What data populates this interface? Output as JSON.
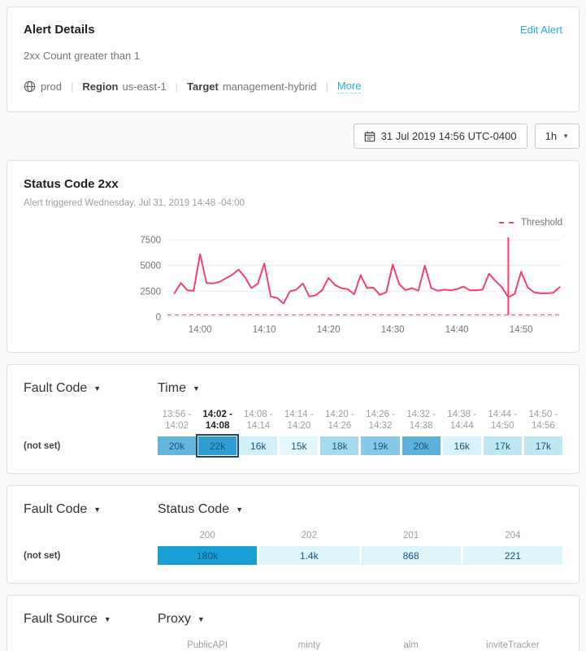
{
  "alert_details": {
    "title": "Alert Details",
    "edit_link": "Edit Alert",
    "condition": "2xx Count greater than 1",
    "environment": "prod",
    "region_label": "Region",
    "region_value": "us-east-1",
    "target_label": "Target",
    "target_value": "management-hybrid",
    "more_link": "More",
    "divider": "|"
  },
  "toolbar": {
    "datetime": "31 Jul 2019 14:56 UTC-0400",
    "range": "1h"
  },
  "chart_card": {
    "title": "Status Code 2xx",
    "subtitle": "Alert triggered Wednesday, Jul 31, 2019 14:48 -04:00",
    "legend_label": "Threshold"
  },
  "chart_data": {
    "type": "line",
    "title": "Status Code 2xx",
    "x_start": "13:56",
    "x_end": "14:56",
    "interval_minutes": 1,
    "x_tick_labels": [
      "14:00",
      "14:10",
      "14:20",
      "14:30",
      "14:40",
      "14:50"
    ],
    "y_ticks": [
      0,
      2500,
      5000,
      7500
    ],
    "ylim": [
      0,
      7500
    ],
    "grid": true,
    "line_color": "#f1426b",
    "threshold_color": "#f36d92",
    "threshold_label": "Threshold",
    "threshold_value": 1,
    "alert_time": "14:48",
    "alert_minute_index": 52,
    "series": [
      {
        "name": "2xx count",
        "values": [
          2300,
          3300,
          2600,
          2550,
          6100,
          3300,
          3250,
          3400,
          3750,
          4100,
          4600,
          3850,
          2800,
          3250,
          5200,
          2000,
          1850,
          1300,
          2500,
          2650,
          3250,
          2000,
          2100,
          2600,
          3800,
          3100,
          2800,
          2700,
          2200,
          4050,
          2800,
          2850,
          2150,
          2400,
          5100,
          3200,
          2600,
          2800,
          2550,
          5000,
          2800,
          2550,
          2650,
          2600,
          2700,
          2950,
          2600,
          2600,
          2650,
          4200,
          3500,
          2900,
          1900,
          2250,
          4400,
          2900,
          2400,
          2300,
          2300,
          2350,
          2900
        ]
      }
    ]
  },
  "tables": [
    {
      "row_dimension": "Fault Code",
      "col_dimension": "Time",
      "row_label": "(not set)",
      "columns": [
        {
          "line1": "13:56 -",
          "line2": "14:02",
          "selected": false
        },
        {
          "line1": "14:02 -",
          "line2": "14:08",
          "selected": true
        },
        {
          "line1": "14:08 -",
          "line2": "14:14",
          "selected": false
        },
        {
          "line1": "14:14 -",
          "line2": "14:20",
          "selected": false
        },
        {
          "line1": "14:20 -",
          "line2": "14:26",
          "selected": false
        },
        {
          "line1": "14:26 -",
          "line2": "14:32",
          "selected": false
        },
        {
          "line1": "14:32 -",
          "line2": "14:38",
          "selected": false
        },
        {
          "line1": "14:38 -",
          "line2": "14:44",
          "selected": false
        },
        {
          "line1": "14:44 -",
          "line2": "14:50",
          "selected": false
        },
        {
          "line1": "14:50 -",
          "line2": "14:56",
          "selected": false
        }
      ],
      "cells": [
        {
          "value": "20k",
          "color": "#64b5dc",
          "selected": false
        },
        {
          "value": "22k",
          "color": "#2f9fd3",
          "selected": true
        },
        {
          "value": "16k",
          "color": "#d2f0f9",
          "selected": false
        },
        {
          "value": "15k",
          "color": "#e4f7fc",
          "selected": false
        },
        {
          "value": "18k",
          "color": "#a5d9ee",
          "selected": false
        },
        {
          "value": "19k",
          "color": "#87c9e6",
          "selected": false
        },
        {
          "value": "20k",
          "color": "#5bb1da",
          "selected": false
        },
        {
          "value": "16k",
          "color": "#d7f2fa",
          "selected": false
        },
        {
          "value": "17k",
          "color": "#c0e7f4",
          "selected": false
        },
        {
          "value": "17k",
          "color": "#c0e7f4",
          "selected": false
        }
      ]
    },
    {
      "row_dimension": "Fault Code",
      "col_dimension": "Status Code",
      "row_label": "(not set)",
      "columns": [
        {
          "line1": "200",
          "selected": false
        },
        {
          "line1": "202",
          "selected": false
        },
        {
          "line1": "201",
          "selected": false
        },
        {
          "line1": "204",
          "selected": false
        }
      ],
      "cells": [
        {
          "value": "180k",
          "color": "#1a9ed6",
          "selected": false
        },
        {
          "value": "1.4k",
          "color": "#ddf4fb",
          "selected": false
        },
        {
          "value": "868",
          "color": "#ddf4fb",
          "selected": false
        },
        {
          "value": "221",
          "color": "#ddf4fb",
          "selected": false
        }
      ]
    },
    {
      "row_dimension": "Fault Source",
      "col_dimension": "Proxy",
      "row_label": "",
      "columns": [
        {
          "line1": "PublicAPI",
          "selected": false
        },
        {
          "line1": "minty",
          "selected": false
        },
        {
          "line1": "alm",
          "selected": false
        },
        {
          "line1": "inviteTracker",
          "selected": false
        }
      ],
      "cells": []
    }
  ]
}
